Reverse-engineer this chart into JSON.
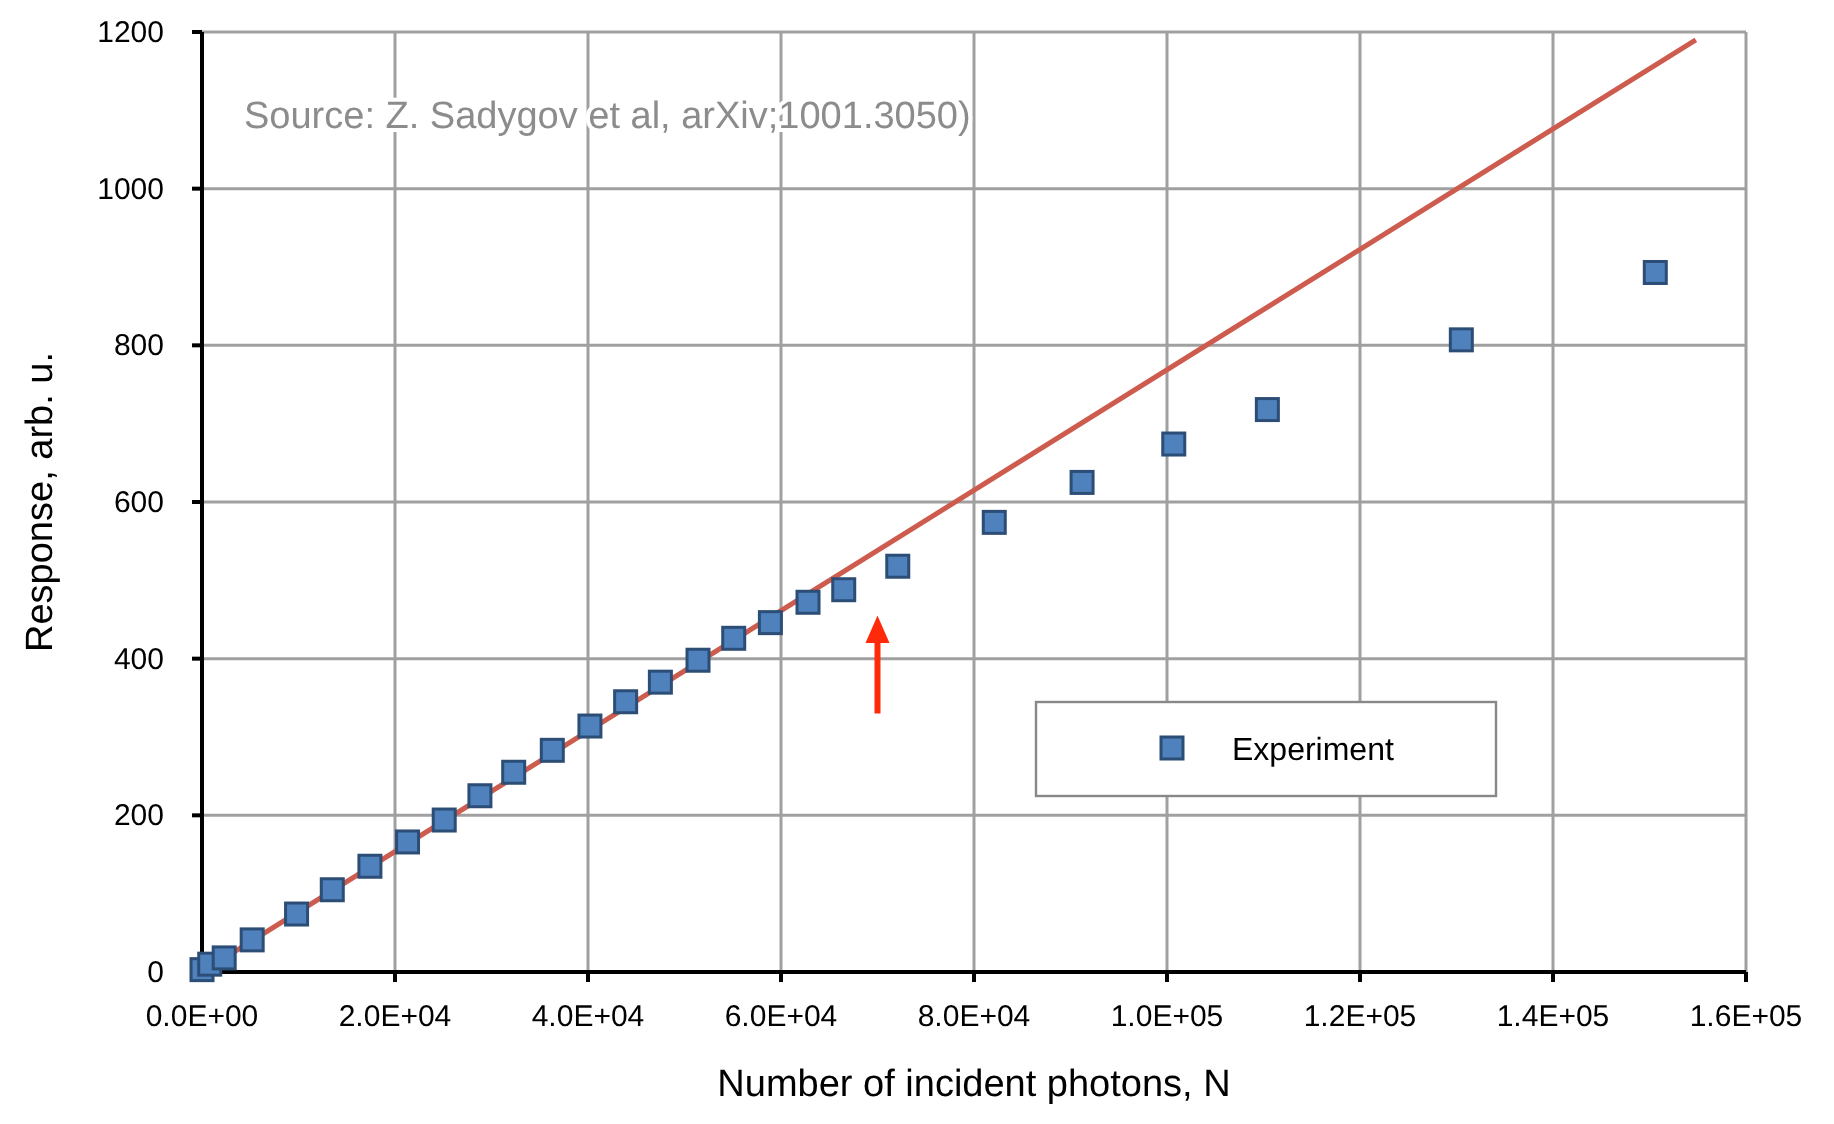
{
  "chart_data": {
    "type": "scatter",
    "xlabel": "Number of incident photons, N",
    "ylabel": "Response, arb. u.",
    "annotations": [
      "Source: Z. Sadygov et al, arXiv;1001.3050)"
    ],
    "xlim": [
      0,
      160000
    ],
    "ylim": [
      0,
      1200
    ],
    "xticks": [
      {
        "value": 0,
        "label": "0.0E+00"
      },
      {
        "value": 20000,
        "label": "2.0E+04"
      },
      {
        "value": 40000,
        "label": "4.0E+04"
      },
      {
        "value": 60000,
        "label": "6.0E+04"
      },
      {
        "value": 80000,
        "label": "8.0E+04"
      },
      {
        "value": 100000,
        "label": "1.0E+05"
      },
      {
        "value": 120000,
        "label": "1.2E+05"
      },
      {
        "value": 140000,
        "label": "1.4E+05"
      },
      {
        "value": 160000,
        "label": "1.6E+05"
      }
    ],
    "yticks": [
      0,
      200,
      400,
      600,
      800,
      1000,
      1200
    ],
    "grid": true,
    "legend": "right",
    "series": [
      {
        "type": "line",
        "color": "#cd5c4f",
        "line_style": "solid",
        "marker": "none",
        "x": [
          0,
          154800
        ],
        "values": [
          0,
          1190
        ]
      },
      {
        "type": "scatter",
        "name": "Experiment",
        "color": "#4f81bd",
        "marker": "square",
        "x": [
          0,
          800,
          2300,
          5200,
          9800,
          13500,
          17400,
          21300,
          25100,
          28800,
          32300,
          36300,
          40200,
          43900,
          47500,
          51400,
          55100,
          58900,
          62800,
          66500,
          72100,
          82100,
          91200,
          100700,
          110400,
          130500,
          150600
        ],
        "values": [
          3,
          10,
          18,
          41,
          74,
          105,
          135,
          166,
          194,
          225,
          255,
          283,
          314,
          345,
          370,
          398,
          426,
          446,
          472,
          488,
          518,
          574,
          625,
          674,
          718,
          807,
          893
        ]
      }
    ]
  }
}
